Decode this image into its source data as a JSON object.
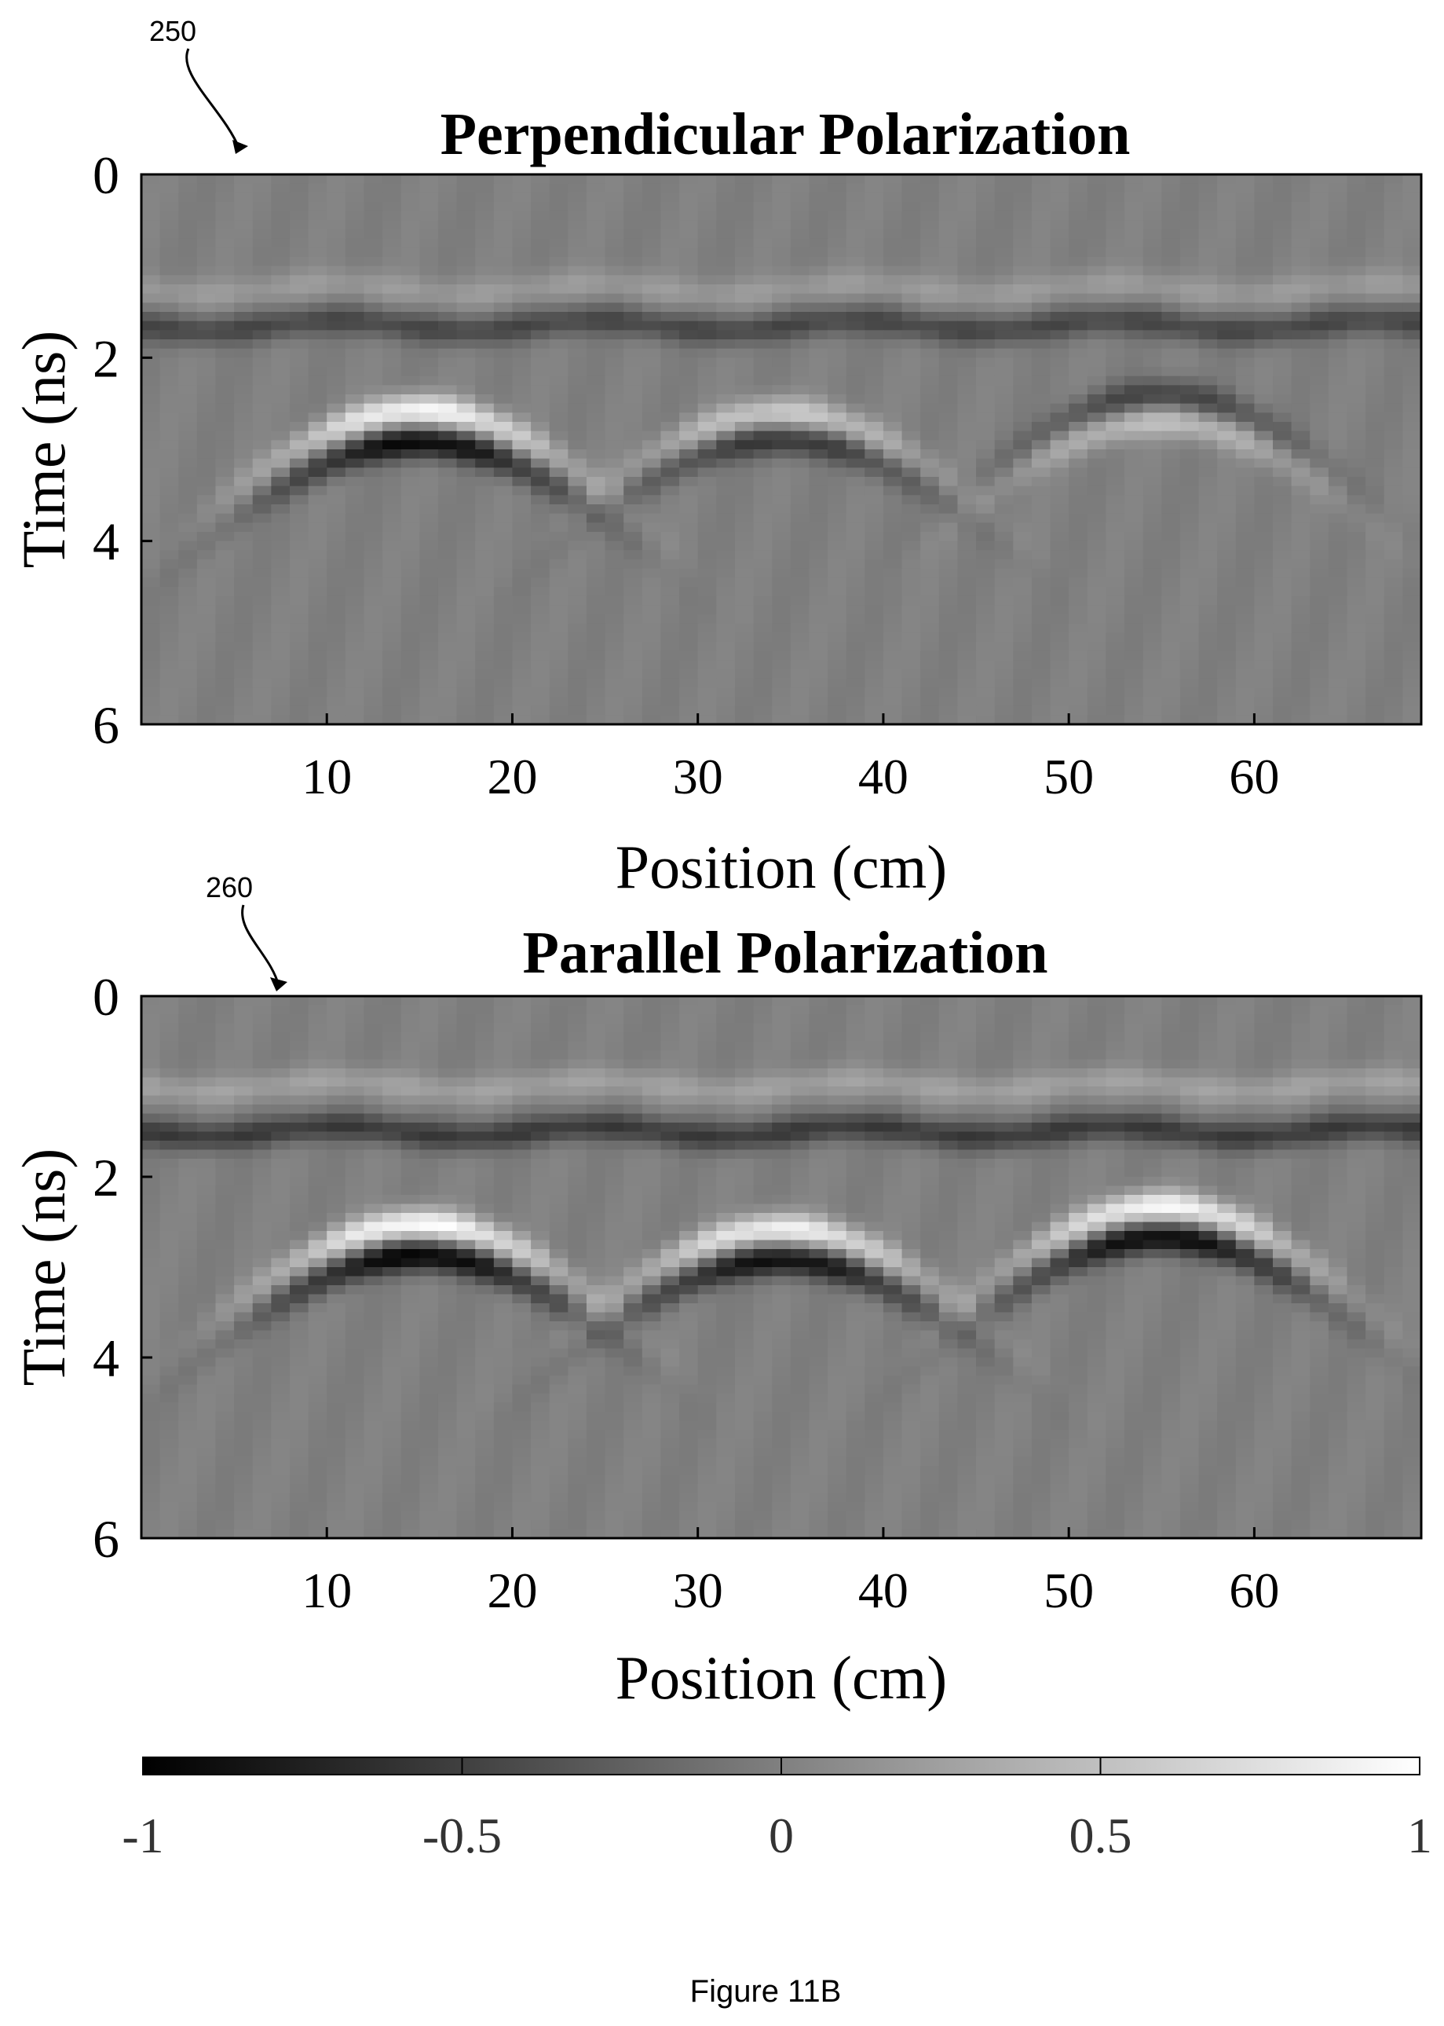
{
  "figure": {
    "caption": "Figure 11B"
  },
  "colorbar": {
    "min": -1,
    "max": 1,
    "tick_values": [
      -1,
      -0.5,
      0,
      0.5,
      1
    ],
    "tick_labels": [
      "-1",
      "-0.5",
      "0",
      "0.5",
      "1"
    ],
    "colormap": "gray",
    "color_low": "#000000",
    "color_mid": "#808080",
    "color_high": "#ffffff"
  },
  "chart_data": [
    {
      "type": "heatmap",
      "reference_numeral": "250",
      "title": "Perpendicular Polarization",
      "xlabel": "Position (cm)",
      "ylabel": "Time (ns)",
      "xlim": [
        0,
        69
      ],
      "ylim": [
        0,
        6
      ],
      "y_reversed": true,
      "xticks": [
        10,
        20,
        30,
        40,
        50,
        60
      ],
      "xtick_labels": [
        "10",
        "20",
        "30",
        "40",
        "50",
        "60"
      ],
      "yticks": [
        0,
        2,
        4,
        6
      ],
      "ytick_labels": [
        "0",
        "2",
        "4",
        "6"
      ],
      "clim": [
        -1,
        1
      ],
      "features": [
        {
          "kind": "band",
          "x_start": 0,
          "x_end": 69,
          "time": 1.65,
          "amplitude": -0.45
        },
        {
          "kind": "band",
          "x_start": 0,
          "x_end": 69,
          "time": 1.25,
          "amplitude": 0.2
        },
        {
          "kind": "hyperbola",
          "apex_position": 15,
          "apex_time": 2.75,
          "amplitude": 0.95,
          "lobe_offset": 0.35
        },
        {
          "kind": "hyperbola",
          "apex_position": 34.5,
          "apex_time": 2.75,
          "amplitude": 0.6,
          "lobe_offset": 0.3
        },
        {
          "kind": "hyperbola",
          "apex_position": 55,
          "apex_time": 2.55,
          "amplitude": -0.5,
          "lobe_offset": 0.3
        }
      ]
    },
    {
      "type": "heatmap",
      "reference_numeral": "260",
      "title": "Parallel Polarization",
      "xlabel": "Position (cm)",
      "ylabel": "Time (ns)",
      "xlim": [
        0,
        69
      ],
      "ylim": [
        0,
        6
      ],
      "y_reversed": true,
      "xticks": [
        10,
        20,
        30,
        40,
        50,
        60
      ],
      "xtick_labels": [
        "10",
        "20",
        "30",
        "40",
        "50",
        "60"
      ],
      "yticks": [
        0,
        2,
        4,
        6
      ],
      "ytick_labels": [
        "0",
        "2",
        "4",
        "6"
      ],
      "clim": [
        -1,
        1
      ],
      "features": [
        {
          "kind": "band",
          "x_start": 0,
          "x_end": 69,
          "time": 1.5,
          "amplitude": -0.55
        },
        {
          "kind": "band",
          "x_start": 0,
          "x_end": 69,
          "time": 1.0,
          "amplitude": 0.25
        },
        {
          "kind": "hyperbola",
          "apex_position": 15,
          "apex_time": 2.7,
          "amplitude": 1.0,
          "lobe_offset": 0.35
        },
        {
          "kind": "hyperbola",
          "apex_position": 34.5,
          "apex_time": 2.75,
          "amplitude": 0.9,
          "lobe_offset": 0.35
        },
        {
          "kind": "hyperbola",
          "apex_position": 55,
          "apex_time": 2.5,
          "amplitude": 0.95,
          "lobe_offset": 0.35
        }
      ]
    }
  ]
}
